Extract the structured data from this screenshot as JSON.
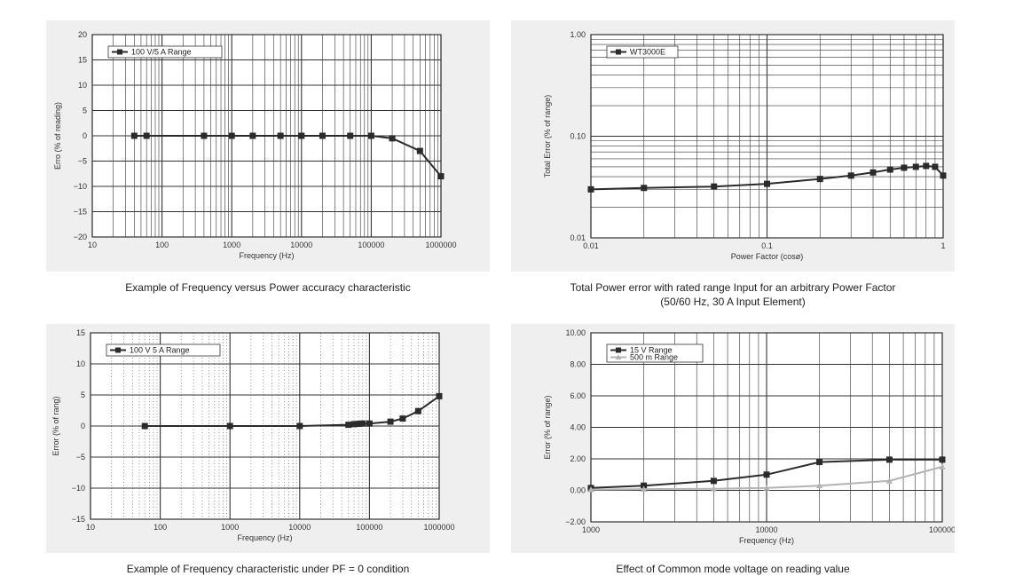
{
  "chart_data": [
    {
      "type": "line",
      "xscale": "log",
      "xlim": [
        10,
        1000000
      ],
      "ylim": [
        -20,
        20
      ],
      "xticks": [
        10,
        100,
        1000,
        10000,
        100000,
        1000000
      ],
      "xtick_labels": [
        "10",
        "100",
        "1000",
        "10000",
        "100000",
        "1000000"
      ],
      "yticks": [
        -20,
        -15,
        -10,
        -5,
        0,
        5,
        10,
        15,
        20
      ],
      "ytick_labels": [
        "−20",
        "−15",
        "−10",
        "−5",
        "0",
        "5",
        "10",
        "15",
        "20"
      ],
      "xlabel": "Frequency (Hz)",
      "ylabel": "Erro (% of reading)",
      "legend_position": "top-left",
      "series": [
        {
          "name": "100 V/5 A Range",
          "color": "#2b2b2b",
          "marker": "square",
          "x": [
            40,
            60,
            400,
            1000,
            2000,
            5000,
            10000,
            20000,
            50000,
            100000,
            200000,
            500000,
            1000000
          ],
          "y": [
            0,
            0,
            0,
            0,
            0,
            0,
            0,
            0,
            0,
            0,
            -0.5,
            -3,
            -8
          ]
        }
      ],
      "caption_lines": [
        "Example of Frequency versus Power accuracy characteristic"
      ]
    },
    {
      "type": "line",
      "xscale": "log",
      "yscale": "log",
      "xlim": [
        0.01,
        1
      ],
      "ylim": [
        0.01,
        1
      ],
      "xticks": [
        0.01,
        0.1,
        1
      ],
      "xtick_labels": [
        "0.01",
        "0.1",
        "1"
      ],
      "yticks": [
        0.01,
        0.1,
        1
      ],
      "ytick_labels": [
        "0.01",
        "0.10",
        "1.00"
      ],
      "xlabel": "Power Factor (cosø)",
      "ylabel": "Total Error (% of range)",
      "legend_position": "top-left",
      "series": [
        {
          "name": "WT3000E",
          "color": "#2b2b2b",
          "marker": "square",
          "x": [
            0.01,
            0.02,
            0.05,
            0.1,
            0.2,
            0.3,
            0.4,
            0.5,
            0.6,
            0.7,
            0.8,
            0.9,
            1.0
          ],
          "y": [
            0.03,
            0.031,
            0.032,
            0.034,
            0.038,
            0.041,
            0.044,
            0.047,
            0.049,
            0.05,
            0.051,
            0.05,
            0.041
          ]
        }
      ],
      "caption_lines": [
        "Total Power error with rated range Input for an arbitrary Power Factor",
        "(50/60 Hz, 30 A Input Element)"
      ]
    },
    {
      "type": "line",
      "xscale": "log",
      "xlim": [
        10,
        1000000
      ],
      "ylim": [
        -15,
        15
      ],
      "xticks": [
        10,
        100,
        1000,
        10000,
        100000,
        1000000
      ],
      "xtick_labels": [
        "10",
        "100",
        "1000",
        "10000",
        "100000",
        "1000000"
      ],
      "yticks": [
        -15,
        -10,
        -5,
        0,
        5,
        10,
        15
      ],
      "ytick_labels": [
        "−15",
        "−10",
        "−5",
        "0",
        "5",
        "10",
        "15"
      ],
      "xlabel": "Frequency (Hz)",
      "ylabel": "Error (% of rang)",
      "legend_position": "top-left",
      "grid_style": "dotted-minor",
      "series": [
        {
          "name": "100 V 5 A Range",
          "color": "#2b2b2b",
          "marker": "square",
          "x": [
            60,
            1000,
            10000,
            50000,
            60000,
            70000,
            80000,
            100000,
            200000,
            300000,
            500000,
            1000000
          ],
          "y": [
            0,
            0,
            0,
            0.2,
            0.3,
            0.35,
            0.4,
            0.4,
            0.7,
            1.2,
            2.4,
            4.8
          ]
        }
      ],
      "caption_lines": [
        "Example of Frequency characteristic under PF = 0 condition"
      ]
    },
    {
      "type": "line",
      "xscale": "log",
      "xlim": [
        1000,
        100000
      ],
      "ylim": [
        -2,
        10
      ],
      "xticks": [
        1000,
        10000,
        100000
      ],
      "xtick_labels": [
        "1000",
        "10000",
        "100000"
      ],
      "yticks": [
        -2,
        0,
        2,
        4,
        6,
        8,
        10
      ],
      "ytick_labels": [
        "−2.00",
        "0.00",
        "2.00",
        "4.00",
        "6.00",
        "8.00",
        "10.00"
      ],
      "xlabel": "Frequency (Hz)",
      "ylabel": "Error (% of range)",
      "legend_position": "top-left",
      "series": [
        {
          "name": "15 V Range",
          "color": "#2b2b2b",
          "marker": "square",
          "x": [
            1000,
            2000,
            5000,
            10000,
            20000,
            50000,
            100000
          ],
          "y": [
            0.15,
            0.3,
            0.6,
            1.0,
            1.8,
            1.95,
            1.95
          ]
        },
        {
          "name": "500 m Range",
          "color": "#b3b3b3",
          "marker": "triangle",
          "x": [
            1000,
            2000,
            5000,
            10000,
            20000,
            50000,
            100000
          ],
          "y": [
            0.05,
            0.08,
            0.1,
            0.15,
            0.3,
            0.6,
            1.5
          ]
        }
      ],
      "caption_lines": [
        "Effect of Common mode voltage on reading value"
      ]
    }
  ]
}
